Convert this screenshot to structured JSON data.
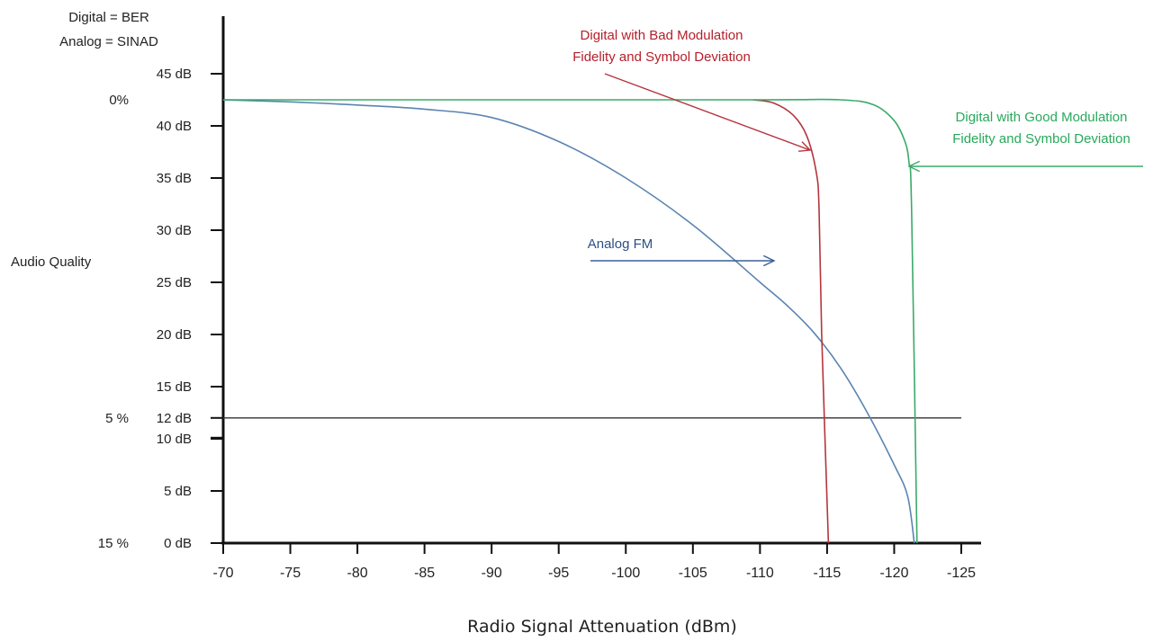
{
  "chart_data": {
    "type": "line",
    "legend_note_lines": [
      "Digital = BER",
      "Analog = SINAD"
    ],
    "ylabel": "Audio Quality",
    "xlabel": "Radio Signal Attenuation (dBm)",
    "x_ticks": [
      "-70",
      "-75",
      "-80",
      "-85",
      "-90",
      "-95",
      "-100",
      "-105",
      "-110",
      "-115",
      "-120",
      "-125"
    ],
    "xlim": [
      -70,
      -125
    ],
    "y_ticks": [
      {
        "value": 45,
        "label": "45 dB"
      },
      {
        "value": 40,
        "label": "40 dB"
      },
      {
        "value": 35,
        "label": "35 dB"
      },
      {
        "value": 30,
        "label": "30 dB"
      },
      {
        "value": 25,
        "label": "25 dB"
      },
      {
        "value": 20,
        "label": "20 dB"
      },
      {
        "value": 15,
        "label": "15 dB"
      },
      {
        "value": 12,
        "label": "12 dB"
      },
      {
        "value": 10,
        "label": "10 dB"
      },
      {
        "value": 5,
        "label": "5 dB"
      },
      {
        "value": 0,
        "label": "0 dB"
      }
    ],
    "ylim": [
      0,
      45
    ],
    "ber_labels": [
      {
        "value": 42.5,
        "label": "0%"
      },
      {
        "value": 12,
        "label": "5 %"
      },
      {
        "value": 0,
        "label": "15 %"
      }
    ],
    "reference_line": {
      "y": 12,
      "color": "#333333"
    },
    "series": [
      {
        "name": "Analog FM",
        "color": "#5b84b1",
        "x": [
          -70,
          -75,
          -80,
          -85,
          -90,
          -95,
          -100,
          -105,
          -110,
          -112,
          -114,
          -116,
          -118,
          -120,
          -121,
          -121.5
        ],
        "y": [
          42.5,
          42.3,
          42,
          41.6,
          40.8,
          38.5,
          35,
          30.5,
          25,
          22.8,
          20.2,
          16.8,
          12.5,
          7.5,
          4.5,
          0
        ]
      },
      {
        "name": "Digital with Bad Modulation Fidelity and Symbol Deviation",
        "color": "#b5353d",
        "x": [
          -109.5,
          -111,
          -112.5,
          -113.5,
          -114.2,
          -114.4,
          -114.6,
          -115.1
        ],
        "y": [
          42.5,
          42.2,
          41,
          39,
          35.5,
          32,
          20,
          0
        ]
      },
      {
        "name": "Digital with Good Modulation Fidelity and Symbol Deviation",
        "color": "#3aaa6a",
        "x": [
          -70,
          -90,
          -110,
          -116,
          -118.5,
          -120,
          -120.8,
          -121.1,
          -121.3,
          -121.7
        ],
        "y": [
          42.5,
          42.5,
          42.5,
          42.5,
          42,
          40.5,
          38.5,
          36.5,
          32,
          0
        ]
      }
    ],
    "annotations": [
      {
        "text_lines": [
          "Analog FM"
        ],
        "color": "#2c4f86",
        "arrow_color": "#3b5f95"
      },
      {
        "text_lines": [
          "Digital with Bad Modulation",
          "Fidelity and Symbol Deviation"
        ],
        "color": "#b51f2a",
        "arrow_color": "#b5353d"
      },
      {
        "text_lines": [
          "Digital with Good Modulation",
          "Fidelity and Symbol Deviation"
        ],
        "color": "#28a95b",
        "arrow_color": "#3aaa6a"
      }
    ]
  }
}
